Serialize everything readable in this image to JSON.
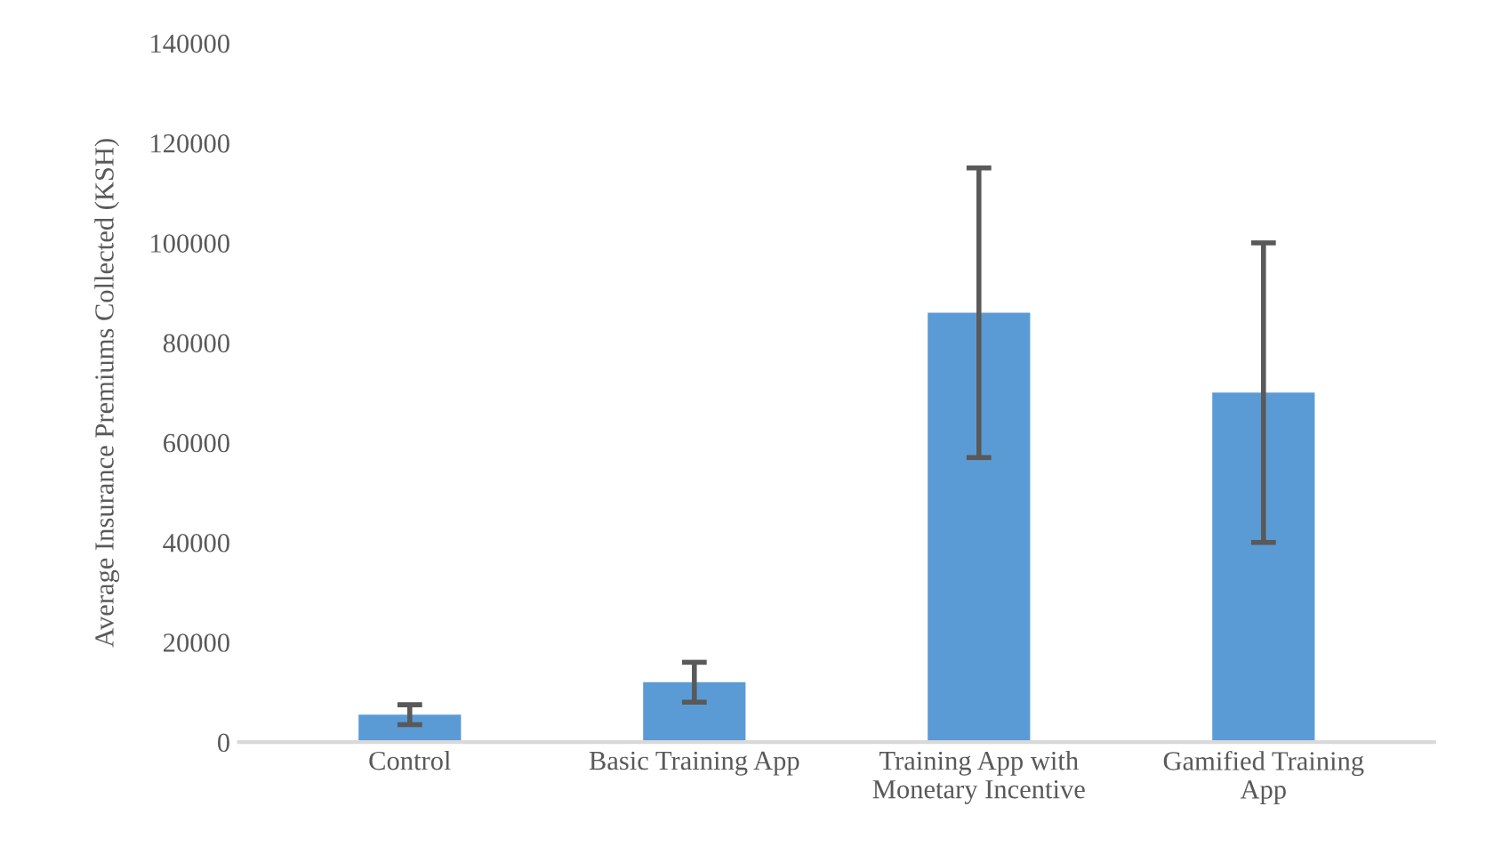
{
  "chart_data": {
    "type": "bar",
    "ylabel": "Average Insurance Premiums Collected (KSH)",
    "categories": [
      "Control",
      "Basic Training App",
      "Training App with\nMonetary Incentive",
      "Gamified Training\nApp"
    ],
    "values": [
      5500,
      12000,
      86000,
      70000
    ],
    "errors": [
      2000,
      4000,
      29000,
      30000
    ],
    "color": "#5b9bd5",
    "ylim": [
      0,
      140000
    ],
    "yticks": [
      0,
      20000,
      40000,
      60000,
      80000,
      100000,
      120000,
      140000
    ],
    "grid": false
  }
}
